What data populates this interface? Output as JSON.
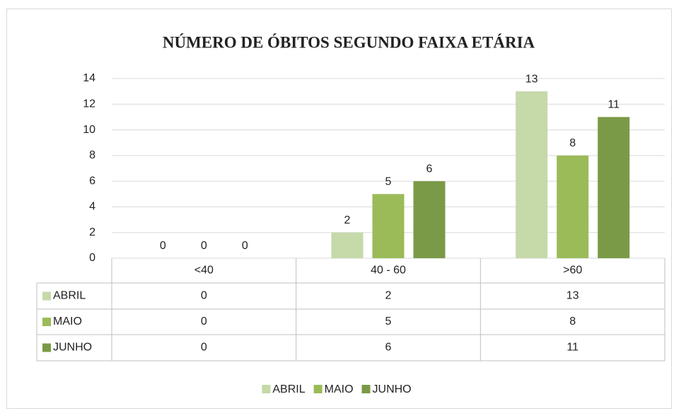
{
  "chart_data": {
    "type": "bar",
    "title": "NÚMERO DE ÓBITOS SEGUNDO FAIXA ETÁRIA",
    "categories": [
      "<40",
      "40 - 60",
      ">60"
    ],
    "series": [
      {
        "name": "ABRIL",
        "color": "#c5d9a9",
        "values": [
          0,
          2,
          13
        ]
      },
      {
        "name": "MAIO",
        "color": "#9bbb59",
        "values": [
          0,
          5,
          8
        ]
      },
      {
        "name": "JUNHO",
        "color": "#7a9a47",
        "values": [
          0,
          6,
          11
        ]
      }
    ],
    "ylim": [
      0,
      14
    ],
    "yticks": [
      0,
      2,
      4,
      6,
      8,
      10,
      12,
      14
    ],
    "grid": true,
    "legend": "bottom",
    "data_table": true
  }
}
